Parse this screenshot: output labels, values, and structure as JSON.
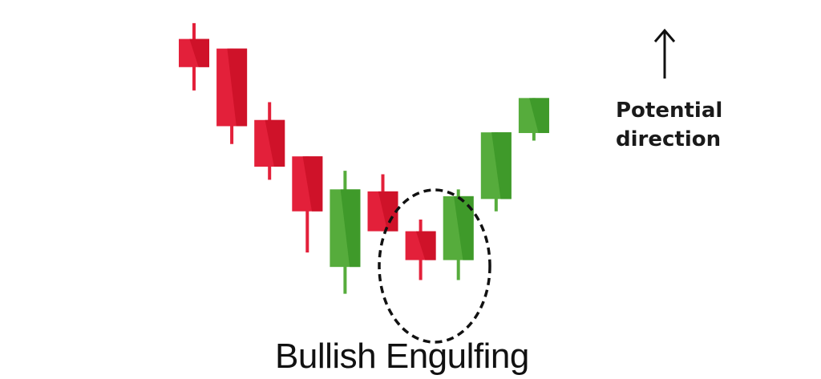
{
  "chart_data": {
    "type": "candlestick",
    "title": "",
    "caption": "Bullish Engulfing",
    "colors": {
      "bullish": "#56ac3c",
      "bearish": "#e3203a"
    },
    "candles": [
      {
        "open": 43.1,
        "close": 39.0,
        "high": 45.4,
        "low": 35.6,
        "direction": "bearish"
      },
      {
        "open": 41.7,
        "close": 30.4,
        "high": 41.7,
        "low": 27.8,
        "direction": "bearish"
      },
      {
        "open": 31.3,
        "close": 24.5,
        "high": 33.9,
        "low": 22.6,
        "direction": "bearish"
      },
      {
        "open": 26.0,
        "close": 18.0,
        "high": 26.0,
        "low": 12.0,
        "direction": "bearish"
      },
      {
        "open": 9.9,
        "close": 21.2,
        "high": 23.9,
        "low": 6.0,
        "direction": "bullish"
      },
      {
        "open": 20.9,
        "close": 15.1,
        "high": 23.4,
        "low": 15.1,
        "direction": "bearish"
      },
      {
        "open": 15.1,
        "close": 10.9,
        "high": 16.8,
        "low": 8.0,
        "direction": "bearish"
      },
      {
        "open": 10.9,
        "close": 20.2,
        "high": 21.2,
        "low": 8.0,
        "direction": "bullish"
      },
      {
        "open": 19.8,
        "close": 29.5,
        "high": 29.5,
        "low": 18.0,
        "direction": "bullish"
      },
      {
        "open": 29.4,
        "close": 34.5,
        "high": 34.5,
        "low": 28.3,
        "direction": "bullish"
      }
    ],
    "highlight": {
      "candles": [
        6,
        7
      ],
      "style": "dashed-ellipse"
    },
    "annotation": {
      "arrow": "up",
      "lines": [
        "Potential",
        "direction"
      ]
    },
    "axes": {
      "visible": false,
      "grid": false
    }
  }
}
